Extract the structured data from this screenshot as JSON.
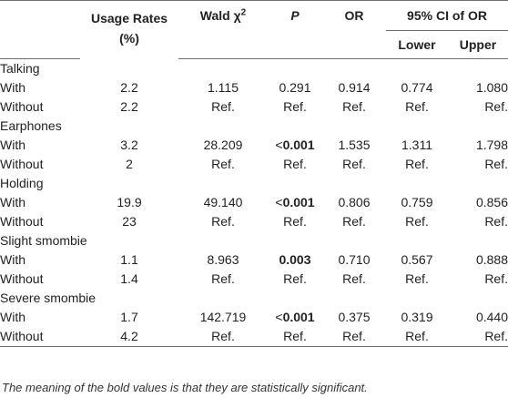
{
  "headers": {
    "usage_rates": "Usage Rates",
    "usage_rates_unit": "(%)",
    "wald": "Wald χ",
    "wald_sup": "2",
    "p": "P",
    "or": "OR",
    "ci": "95% CI of OR",
    "lower": "Lower",
    "upper": "Upper"
  },
  "groups": [
    {
      "name": "Talking",
      "rows": [
        {
          "label": "With",
          "usage": "2.2",
          "wald": "1.115",
          "p_prefix": "",
          "p": "0.291",
          "p_bold": false,
          "or": "0.914",
          "lower": "0.774",
          "upper": "1.080"
        },
        {
          "label": "Without",
          "usage": "2.2",
          "wald": "Ref.",
          "p_prefix": "",
          "p": "Ref.",
          "p_bold": false,
          "or": "Ref.",
          "lower": "Ref.",
          "upper": "Ref."
        }
      ]
    },
    {
      "name": "Earphones",
      "rows": [
        {
          "label": "With",
          "usage": "3.2",
          "wald": "28.209",
          "p_prefix": "<",
          "p": "0.001",
          "p_bold": true,
          "or": "1.535",
          "lower": "1.311",
          "upper": "1.798"
        },
        {
          "label": "Without",
          "usage": "2",
          "wald": "Ref.",
          "p_prefix": "",
          "p": "Ref.",
          "p_bold": false,
          "or": "Ref.",
          "lower": "Ref.",
          "upper": "Ref."
        }
      ]
    },
    {
      "name": "Holding",
      "rows": [
        {
          "label": "With",
          "usage": "19.9",
          "wald": "49.140",
          "p_prefix": "<",
          "p": "0.001",
          "p_bold": true,
          "or": "0.806",
          "lower": "0.759",
          "upper": "0.856"
        },
        {
          "label": "Without",
          "usage": "23",
          "wald": "Ref.",
          "p_prefix": "",
          "p": "Ref.",
          "p_bold": false,
          "or": "Ref.",
          "lower": "Ref.",
          "upper": "Ref."
        }
      ]
    },
    {
      "name": "Slight smombie",
      "rows": [
        {
          "label": "With",
          "usage": "1.1",
          "wald": "8.963",
          "p_prefix": "",
          "p": "0.003",
          "p_bold": true,
          "or": "0.710",
          "lower": "0.567",
          "upper": "0.888"
        },
        {
          "label": "Without",
          "usage": "1.4",
          "wald": "Ref.",
          "p_prefix": "",
          "p": "Ref.",
          "p_bold": false,
          "or": "Ref.",
          "lower": "Ref.",
          "upper": "Ref."
        }
      ]
    },
    {
      "name": "Severe smombie",
      "rows": [
        {
          "label": "With",
          "usage": "1.7",
          "wald": "142.719",
          "p_prefix": "<",
          "p": "0.001",
          "p_bold": true,
          "or": "0.375",
          "lower": "0.319",
          "upper": "0.440"
        },
        {
          "label": "Without",
          "usage": "4.2",
          "wald": "Ref.",
          "p_prefix": "",
          "p": "Ref.",
          "p_bold": false,
          "or": "Ref.",
          "lower": "Ref.",
          "upper": "Ref."
        }
      ]
    }
  ],
  "footnote": "The meaning of the bold values is that they are statistically significant."
}
